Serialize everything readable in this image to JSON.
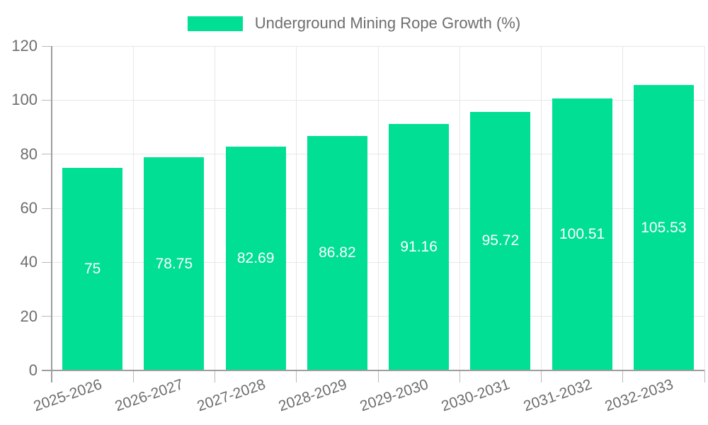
{
  "legend": {
    "label": "Underground Mining Rope Growth (%)"
  },
  "chart_data": {
    "type": "bar",
    "title": "Underground Mining Rope Growth (%)",
    "categories": [
      "2025-2026",
      "2026-2027",
      "2027-2028",
      "2028-2029",
      "2029-2030",
      "2030-2031",
      "2031-2032",
      "2032-2033"
    ],
    "series": [
      {
        "name": "Underground Mining Rope Growth (%)",
        "values": [
          75,
          78.75,
          82.69,
          86.82,
          91.16,
          95.72,
          100.51,
          105.53
        ]
      }
    ],
    "value_labels": [
      "75",
      "78.75",
      "82.69",
      "86.82",
      "91.16",
      "95.72",
      "100.51",
      "105.53"
    ],
    "xlabel": "",
    "ylabel": "",
    "ylim": [
      0,
      120
    ],
    "y_ticks": [
      0,
      20,
      40,
      60,
      80,
      100,
      120
    ],
    "grid": true,
    "legend_position": "top",
    "colors": {
      "bar": "#00DF94",
      "value_label": "#FFFFFF",
      "axis_line": "#9E9E9E",
      "tick_mark": "#B9B9B9",
      "gridline": "#E7E7E7",
      "tick_label": "#6E6E6E",
      "legend_text": "#6E6E6E",
      "background": "#FFFFFF"
    }
  }
}
